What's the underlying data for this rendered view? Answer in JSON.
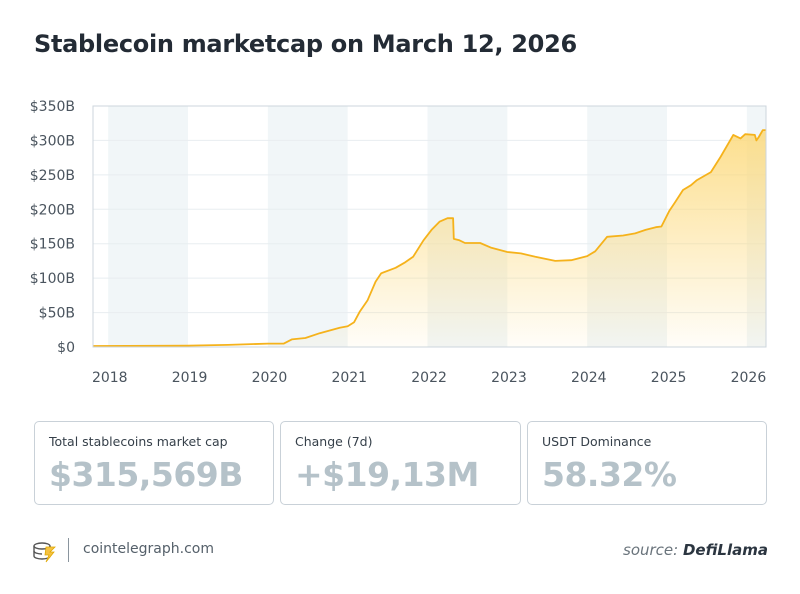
{
  "title": "Stablecoin marketcap on March 12, 2026",
  "chart_data": {
    "type": "area",
    "title": "Stablecoin marketcap on March 12, 2026",
    "xlabel": "",
    "ylabel": "",
    "xlim": [
      2017.81,
      2026.24
    ],
    "ylim": [
      0,
      350
    ],
    "y_ticks": [
      0,
      50,
      100,
      150,
      200,
      250,
      300,
      350
    ],
    "y_tick_labels": [
      "$0",
      "$50B",
      "$100B",
      "$150B",
      "$200B",
      "$250B",
      "$300B",
      "$350B"
    ],
    "x_ticks": [
      2018,
      2019,
      2020,
      2021,
      2022,
      2023,
      2024,
      2025,
      2026
    ],
    "x_tick_labels": [
      "2018",
      "2019",
      "2020",
      "2021",
      "2022",
      "2023",
      "2024",
      "2025",
      "2026"
    ],
    "shaded_years": [
      2018,
      2020,
      2022,
      2024,
      2026
    ],
    "grid": true,
    "line_color": "#f5b21b",
    "fill_color": "#fcd97a",
    "band_color": "#f1f6f8",
    "points": [
      [
        2017.81,
        1.5
      ],
      [
        2019.0,
        2
      ],
      [
        2019.5,
        3
      ],
      [
        2020.0,
        5
      ],
      [
        2020.2,
        5
      ],
      [
        2020.3,
        11
      ],
      [
        2020.47,
        13
      ],
      [
        2020.65,
        20
      ],
      [
        2020.9,
        28
      ],
      [
        2021.0,
        30
      ],
      [
        2021.08,
        36
      ],
      [
        2021.15,
        51
      ],
      [
        2021.25,
        68
      ],
      [
        2021.35,
        95
      ],
      [
        2021.42,
        107
      ],
      [
        2021.6,
        115
      ],
      [
        2021.72,
        123
      ],
      [
        2021.82,
        131
      ],
      [
        2021.95,
        155
      ],
      [
        2022.05,
        170
      ],
      [
        2022.15,
        182
      ],
      [
        2022.25,
        187
      ],
      [
        2022.32,
        187
      ],
      [
        2022.33,
        157
      ],
      [
        2022.4,
        155
      ],
      [
        2022.47,
        151
      ],
      [
        2022.66,
        151
      ],
      [
        2022.8,
        144
      ],
      [
        2023.0,
        138
      ],
      [
        2023.17,
        136
      ],
      [
        2023.35,
        131
      ],
      [
        2023.6,
        125
      ],
      [
        2023.8,
        126
      ],
      [
        2024.0,
        132
      ],
      [
        2024.1,
        139
      ],
      [
        2024.25,
        160
      ],
      [
        2024.45,
        162
      ],
      [
        2024.6,
        165
      ],
      [
        2024.73,
        170
      ],
      [
        2024.86,
        174
      ],
      [
        2024.93,
        175
      ],
      [
        2025.03,
        198
      ],
      [
        2025.1,
        210
      ],
      [
        2025.2,
        228
      ],
      [
        2025.3,
        235
      ],
      [
        2025.37,
        242
      ],
      [
        2025.55,
        254
      ],
      [
        2025.67,
        276
      ],
      [
        2025.83,
        308
      ],
      [
        2025.92,
        303
      ],
      [
        2025.98,
        309
      ],
      [
        2026.1,
        308
      ],
      [
        2026.12,
        300
      ],
      [
        2026.15,
        305
      ],
      [
        2026.2,
        315
      ],
      [
        2026.24,
        315
      ]
    ]
  },
  "cards": [
    {
      "label": "Total stablecoins market cap",
      "value": "$315,569B"
    },
    {
      "label": "Change (7d)",
      "value": "+$19,13M"
    },
    {
      "label": "USDT Dominance",
      "value": "58.32%"
    }
  ],
  "footer": {
    "site": "cointelegraph.com",
    "source_prefix": "source:",
    "source_name": "DefiLlama",
    "logo_icon": "cointelegraph-logo-icon"
  }
}
